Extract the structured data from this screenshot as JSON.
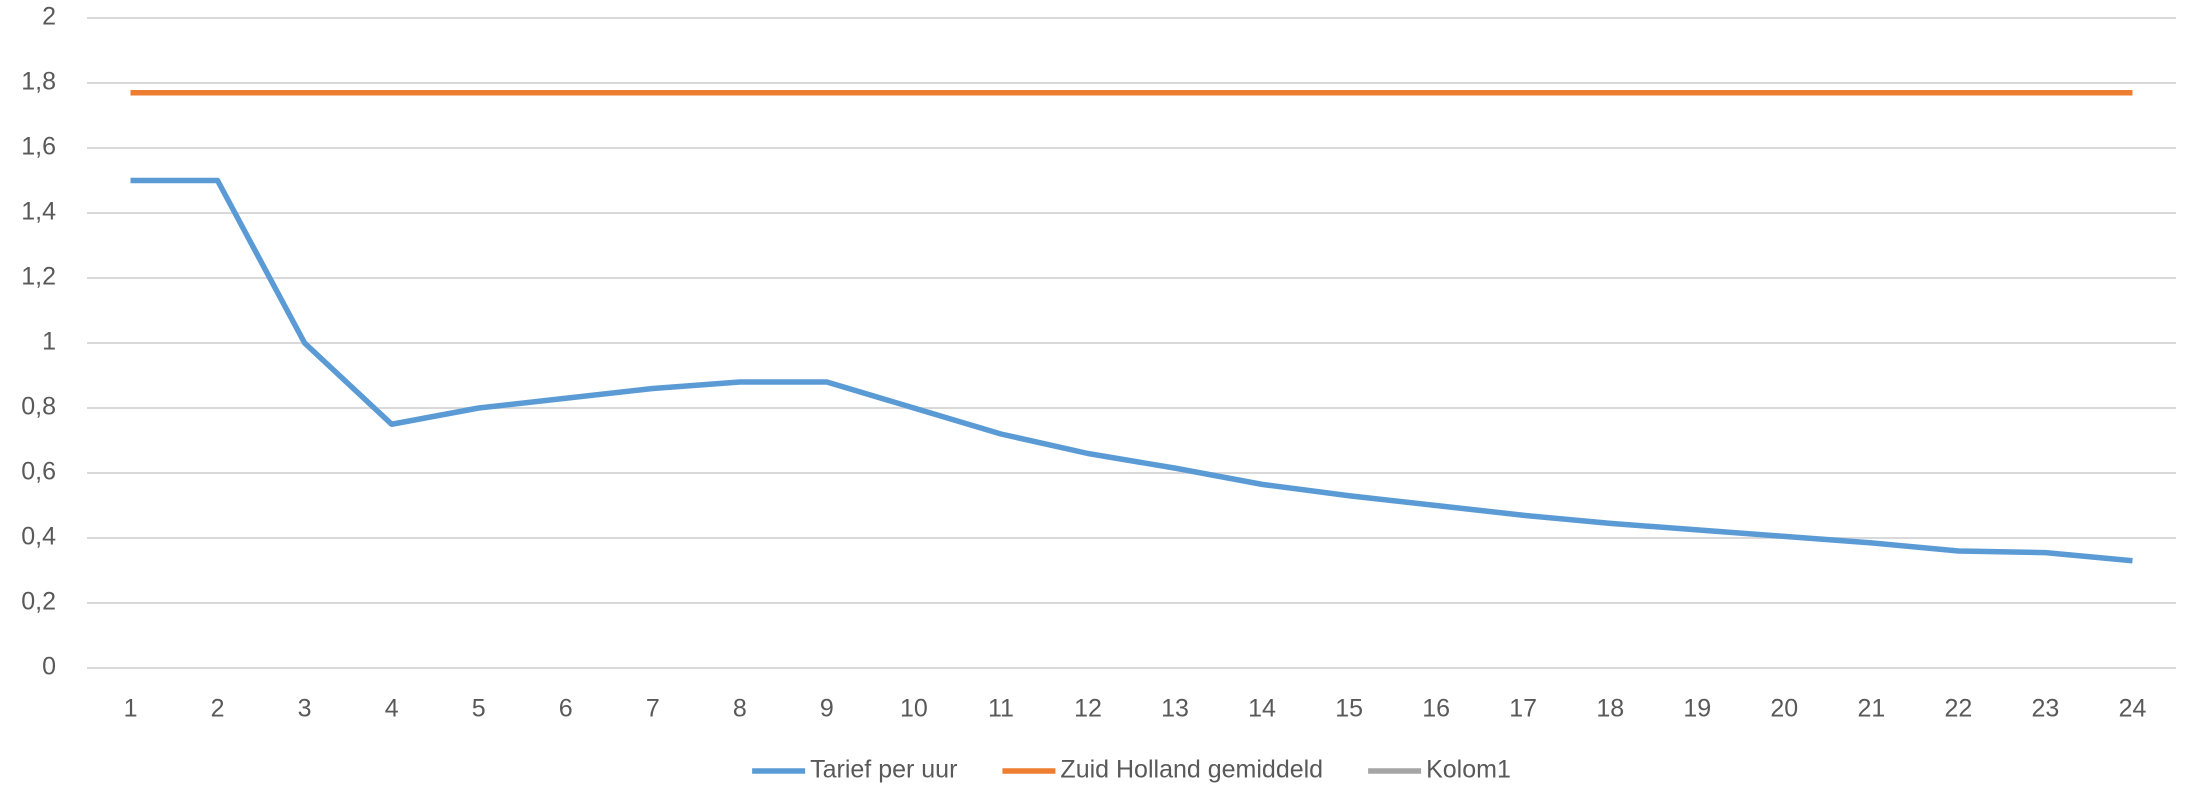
{
  "chart_data": {
    "type": "line",
    "categories": [
      "1",
      "2",
      "3",
      "4",
      "5",
      "6",
      "7",
      "8",
      "9",
      "10",
      "11",
      "12",
      "13",
      "14",
      "15",
      "16",
      "17",
      "18",
      "19",
      "20",
      "21",
      "22",
      "23",
      "24"
    ],
    "series": [
      {
        "name": "Tarief per uur",
        "color": "#5b9bd5",
        "values": [
          1.5,
          1.5,
          1.0,
          0.75,
          0.8,
          0.83,
          0.86,
          0.88,
          0.88,
          0.8,
          0.72,
          0.66,
          0.615,
          0.565,
          0.53,
          0.5,
          0.47,
          0.445,
          0.425,
          0.405,
          0.385,
          0.36,
          0.355,
          0.33
        ]
      },
      {
        "name": "Zuid Holland gemiddeld",
        "color": "#ed7d31",
        "values": [
          1.77,
          1.77,
          1.77,
          1.77,
          1.77,
          1.77,
          1.77,
          1.77,
          1.77,
          1.77,
          1.77,
          1.77,
          1.77,
          1.77,
          1.77,
          1.77,
          1.77,
          1.77,
          1.77,
          1.77,
          1.77,
          1.77,
          1.77,
          1.77
        ]
      },
      {
        "name": "Kolom1",
        "color": "#a5a5a5",
        "values": [
          null,
          null,
          null,
          null,
          null,
          null,
          null,
          null,
          null,
          null,
          null,
          null,
          null,
          null,
          null,
          null,
          null,
          null,
          null,
          null,
          null,
          null,
          null,
          null
        ]
      }
    ],
    "ylim": [
      0,
      2
    ],
    "yticks": [
      0,
      {
        "value": 0.2,
        "label": "0,2"
      },
      {
        "value": 0.4,
        "label": "0,4"
      },
      {
        "value": 0.6,
        "label": "0,6"
      },
      {
        "value": 0.8,
        "label": "0,8"
      },
      1,
      {
        "value": 1.2,
        "label": "1,2"
      },
      {
        "value": 1.4,
        "label": "1,4"
      },
      {
        "value": 1.6,
        "label": "1,6"
      },
      {
        "value": 1.8,
        "label": "1,8"
      },
      2
    ],
    "grid": true,
    "legend": "bottom"
  }
}
